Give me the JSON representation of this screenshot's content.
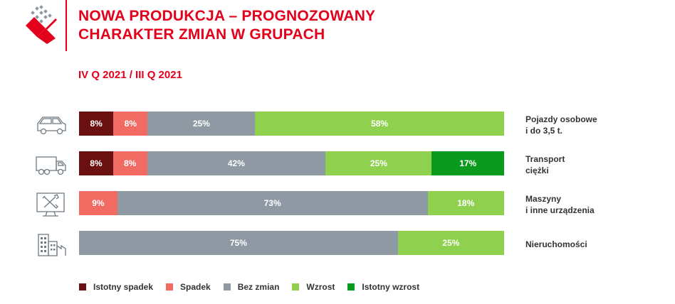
{
  "header": {
    "title_line1": "NOWA PRODUKCJA – PROGNOZOWANY",
    "title_line2": "CHARAKTER ZMIAN W GRUPACH",
    "subtitle": "IV Q 2021 / III Q 2021"
  },
  "colors": {
    "accent": "#e3001b",
    "istotny_spadek": "#6b1010",
    "spadek": "#f26b63",
    "bez_zmian": "#8e99a3",
    "wzrost": "#8fd14f",
    "istotny_wzrost": "#0a9b1e"
  },
  "icons": [
    "car-icon",
    "truck-icon",
    "machine-tools-icon",
    "building-icon"
  ],
  "chart_data": {
    "type": "bar",
    "orientation": "horizontal",
    "stacked": true,
    "percent": true,
    "categories": [
      "Pojazdy osobowe i do 3,5 t.",
      "Transport ciężki",
      "Maszyny i inne urządzenia",
      "Nieruchomości"
    ],
    "category_lines": [
      [
        "Pojazdy osobowe",
        "i do 3,5 t."
      ],
      [
        "Transport",
        "ciężki"
      ],
      [
        "Maszyny",
        "i inne urządzenia"
      ],
      [
        "Nieruchomości"
      ]
    ],
    "series": [
      {
        "name": "Istotny spadek",
        "color": "#6b1010",
        "values": [
          8,
          8,
          0,
          0
        ]
      },
      {
        "name": "Spadek",
        "color": "#f26b63",
        "values": [
          8,
          8,
          9,
          0
        ]
      },
      {
        "name": "Bez zmian",
        "color": "#8e99a3",
        "values": [
          25,
          42,
          73,
          75
        ]
      },
      {
        "name": "Wzrost",
        "color": "#8fd14f",
        "values": [
          58,
          25,
          18,
          25
        ]
      },
      {
        "name": "Istotny wzrost",
        "color": "#0a9b1e",
        "values": [
          0,
          17,
          0,
          0
        ]
      }
    ],
    "data_labels": [
      [
        "8%",
        "8%",
        "25%",
        "58%",
        ""
      ],
      [
        "8%",
        "8%",
        "42%",
        "25%",
        "17%"
      ],
      [
        "",
        "9%",
        "73%",
        "18%",
        ""
      ],
      [
        "",
        "",
        "75%",
        "25%",
        ""
      ]
    ],
    "legend_position": "bottom",
    "grid": false
  }
}
